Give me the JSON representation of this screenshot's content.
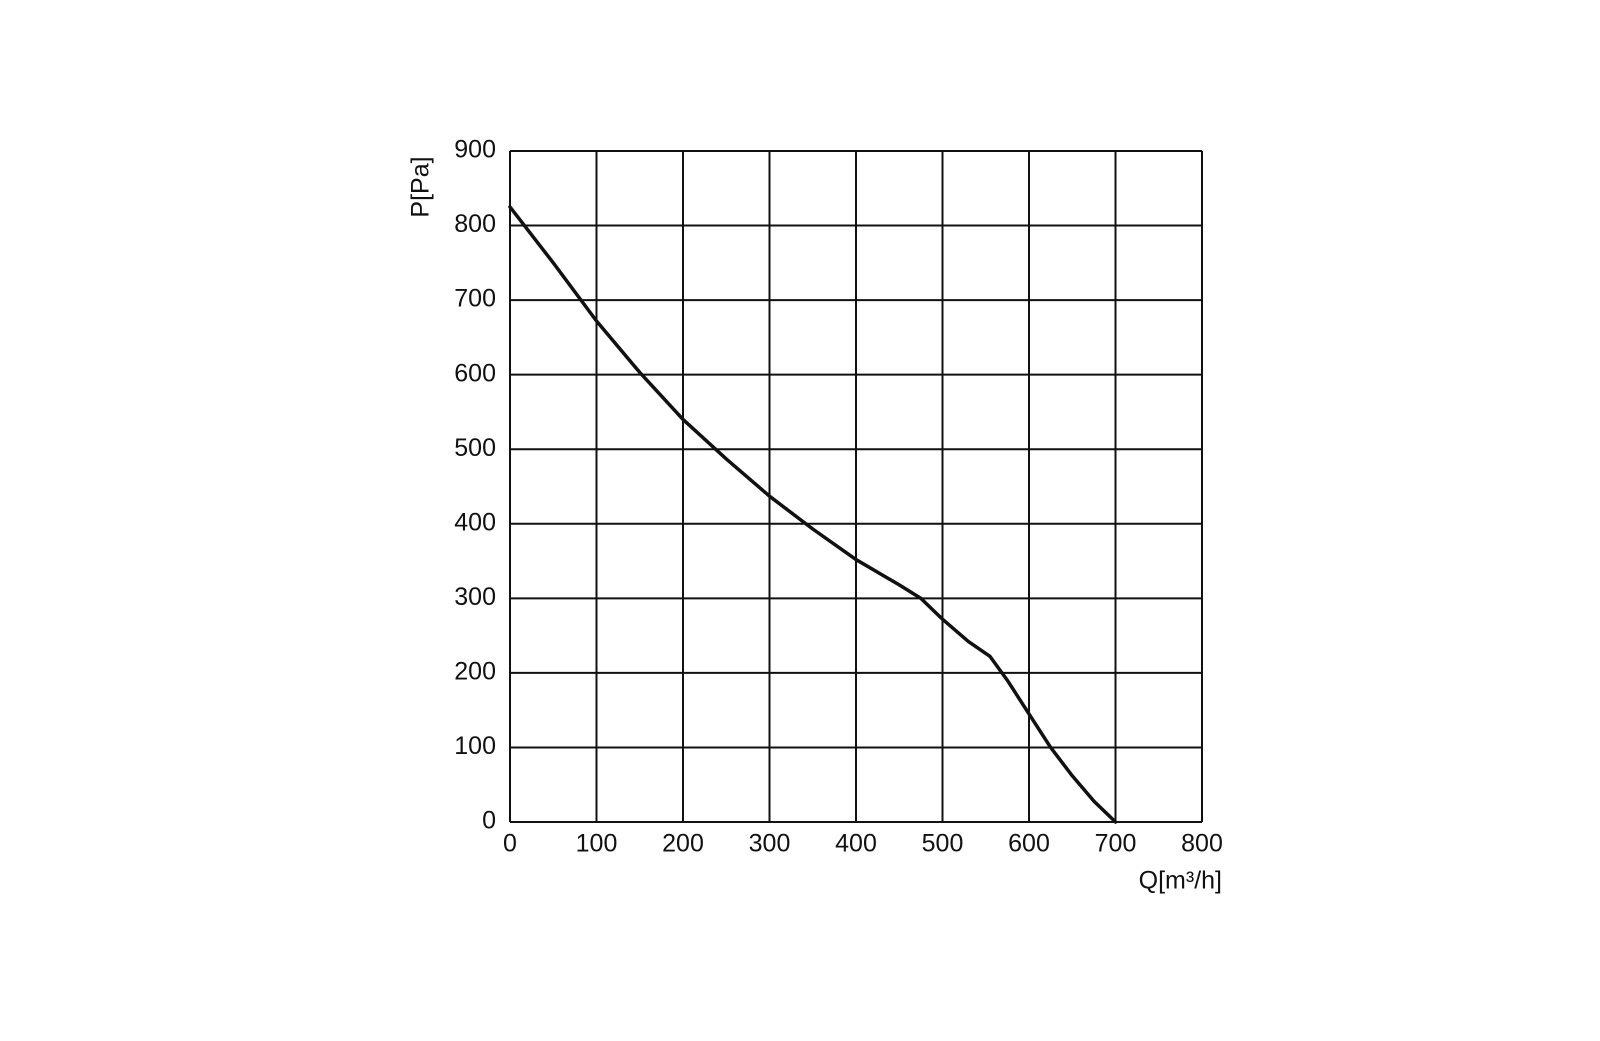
{
  "chart_data": {
    "type": "line",
    "x_label": "Q[m³/h]",
    "y_label": "P[Pa]",
    "x": [
      0,
      50,
      100,
      150,
      200,
      250,
      300,
      350,
      400,
      450,
      475,
      500,
      530,
      555,
      575,
      600,
      625,
      650,
      675,
      700
    ],
    "series": [
      {
        "color": "#111111",
        "values": [
          825,
          750,
          672,
          603,
          540,
          487,
          437,
          393,
          352,
          318,
          300,
          272,
          242,
          222,
          190,
          145,
          100,
          62,
          28,
          0
        ]
      }
    ],
    "xlim": [
      0,
      800
    ],
    "ylim": [
      0,
      900
    ],
    "xticks": [
      0,
      100,
      200,
      300,
      400,
      500,
      600,
      700,
      800
    ],
    "yticks": [
      0,
      100,
      200,
      300,
      400,
      500,
      600,
      700,
      800,
      900
    ],
    "grid": true
  }
}
